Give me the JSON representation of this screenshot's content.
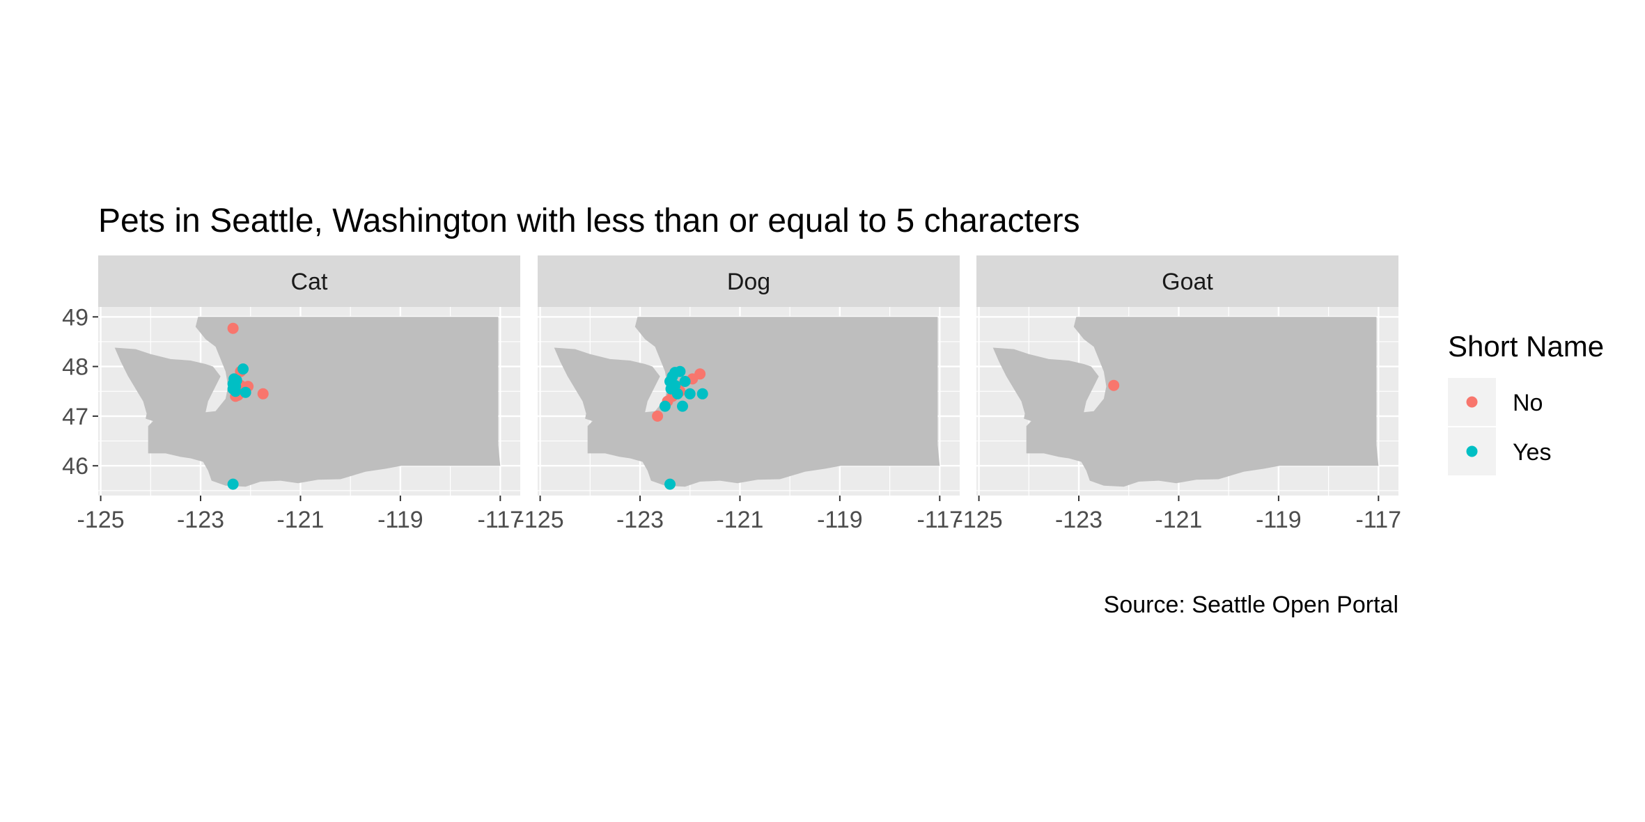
{
  "chart_data": {
    "type": "scatter",
    "title": "Pets in Seattle, Washington with less than or equal to 5 characters",
    "caption": "Source: Seattle Open Portal",
    "xlabel": "",
    "ylabel": "",
    "xlim": [
      -125.05,
      -116.6
    ],
    "ylim": [
      45.4,
      49.2
    ],
    "x_ticks": [
      -125,
      -123,
      -121,
      -119,
      -117
    ],
    "x_tick_labels": [
      "-125",
      "-123",
      "-121",
      "-119",
      "-117"
    ],
    "y_ticks": [
      46,
      47,
      48,
      49
    ],
    "y_tick_labels": [
      "46",
      "47",
      "48",
      "49"
    ],
    "grid": true,
    "legend": {
      "title": "Short Name",
      "position": "right",
      "entries": [
        {
          "label": "No",
          "color": "#F8766D"
        },
        {
          "label": "Yes",
          "color": "#00BFC4"
        }
      ]
    },
    "colors": {
      "No": "#F8766D",
      "Yes": "#00BFC4",
      "land": "#bebebe",
      "panel": "#ebebeb",
      "strip": "#d9d9d9"
    },
    "washington_outline": [
      [
        -124.3,
        48.35
      ],
      [
        -124.72,
        48.38
      ],
      [
        -124.6,
        48.1
      ],
      [
        -124.45,
        47.8
      ],
      [
        -124.3,
        47.55
      ],
      [
        -124.15,
        47.3
      ],
      [
        -124.08,
        47.05
      ],
      [
        -124.1,
        46.95
      ],
      [
        -123.95,
        46.9
      ],
      [
        -124.05,
        46.8
      ],
      [
        -124.05,
        46.6
      ],
      [
        -124.05,
        46.25
      ],
      [
        -123.7,
        46.25
      ],
      [
        -123.4,
        46.18
      ],
      [
        -123.2,
        46.15
      ],
      [
        -122.95,
        46.08
      ],
      [
        -122.85,
        45.9
      ],
      [
        -122.78,
        45.7
      ],
      [
        -122.5,
        45.6
      ],
      [
        -122.1,
        45.58
      ],
      [
        -121.8,
        45.68
      ],
      [
        -121.4,
        45.7
      ],
      [
        -121.05,
        45.65
      ],
      [
        -120.65,
        45.72
      ],
      [
        -120.2,
        45.73
      ],
      [
        -119.7,
        45.88
      ],
      [
        -119.3,
        45.94
      ],
      [
        -118.98,
        46.0
      ],
      [
        -117.0,
        46.0
      ],
      [
        -117.04,
        46.42
      ],
      [
        -117.04,
        47.0
      ],
      [
        -117.04,
        48.0
      ],
      [
        -117.04,
        49.0
      ],
      [
        -123.05,
        49.0
      ],
      [
        -123.1,
        48.8
      ],
      [
        -122.9,
        48.55
      ],
      [
        -122.7,
        48.4
      ],
      [
        -122.6,
        48.15
      ],
      [
        -122.5,
        47.9
      ],
      [
        -122.45,
        47.6
      ],
      [
        -122.5,
        47.35
      ],
      [
        -122.7,
        47.1
      ],
      [
        -122.9,
        47.08
      ],
      [
        -122.85,
        47.3
      ],
      [
        -122.75,
        47.5
      ],
      [
        -122.6,
        47.8
      ],
      [
        -122.75,
        48.0
      ],
      [
        -122.9,
        48.05
      ],
      [
        -123.2,
        48.12
      ],
      [
        -123.6,
        48.15
      ],
      [
        -124.0,
        48.25
      ]
    ],
    "panels": [
      {
        "label": "Cat",
        "points": [
          {
            "x": -122.35,
            "y": 48.77,
            "short_name": "No"
          },
          {
            "x": -122.2,
            "y": 47.9,
            "short_name": "No"
          },
          {
            "x": -122.2,
            "y": 47.62,
            "short_name": "No"
          },
          {
            "x": -122.05,
            "y": 47.6,
            "short_name": "No"
          },
          {
            "x": -122.18,
            "y": 47.48,
            "short_name": "No"
          },
          {
            "x": -122.3,
            "y": 47.4,
            "short_name": "No"
          },
          {
            "x": -122.25,
            "y": 47.42,
            "short_name": "No"
          },
          {
            "x": -121.75,
            "y": 47.45,
            "short_name": "No"
          },
          {
            "x": -122.32,
            "y": 47.55,
            "short_name": "No"
          },
          {
            "x": -122.15,
            "y": 47.95,
            "short_name": "Yes"
          },
          {
            "x": -122.33,
            "y": 47.75,
            "short_name": "Yes"
          },
          {
            "x": -122.28,
            "y": 47.72,
            "short_name": "Yes"
          },
          {
            "x": -122.35,
            "y": 47.65,
            "short_name": "Yes"
          },
          {
            "x": -122.3,
            "y": 47.6,
            "short_name": "Yes"
          },
          {
            "x": -122.35,
            "y": 47.55,
            "short_name": "Yes"
          },
          {
            "x": -122.3,
            "y": 47.5,
            "short_name": "Yes"
          },
          {
            "x": -122.1,
            "y": 47.48,
            "short_name": "Yes"
          },
          {
            "x": -122.35,
            "y": 45.63,
            "short_name": "Yes"
          }
        ]
      },
      {
        "label": "Dog",
        "points": [
          {
            "x": -121.8,
            "y": 47.85,
            "short_name": "No"
          },
          {
            "x": -121.95,
            "y": 47.75,
            "short_name": "No"
          },
          {
            "x": -122.25,
            "y": 47.6,
            "short_name": "No"
          },
          {
            "x": -122.2,
            "y": 47.5,
            "short_name": "No"
          },
          {
            "x": -122.35,
            "y": 47.4,
            "short_name": "No"
          },
          {
            "x": -122.45,
            "y": 47.3,
            "short_name": "No"
          },
          {
            "x": -122.65,
            "y": 47.0,
            "short_name": "No"
          },
          {
            "x": -122.2,
            "y": 47.9,
            "short_name": "Yes"
          },
          {
            "x": -122.3,
            "y": 47.88,
            "short_name": "Yes"
          },
          {
            "x": -122.35,
            "y": 47.8,
            "short_name": "Yes"
          },
          {
            "x": -122.1,
            "y": 47.7,
            "short_name": "Yes"
          },
          {
            "x": -122.4,
            "y": 47.7,
            "short_name": "Yes"
          },
          {
            "x": -122.3,
            "y": 47.62,
            "short_name": "Yes"
          },
          {
            "x": -122.38,
            "y": 47.55,
            "short_name": "Yes"
          },
          {
            "x": -122.0,
            "y": 47.45,
            "short_name": "Yes"
          },
          {
            "x": -121.75,
            "y": 47.45,
            "short_name": "Yes"
          },
          {
            "x": -122.25,
            "y": 47.45,
            "short_name": "Yes"
          },
          {
            "x": -122.15,
            "y": 47.2,
            "short_name": "Yes"
          },
          {
            "x": -122.5,
            "y": 47.2,
            "short_name": "Yes"
          },
          {
            "x": -122.4,
            "y": 45.63,
            "short_name": "Yes"
          }
        ]
      },
      {
        "label": "Goat",
        "points": [
          {
            "x": -122.3,
            "y": 47.62,
            "short_name": "No"
          }
        ]
      }
    ]
  }
}
